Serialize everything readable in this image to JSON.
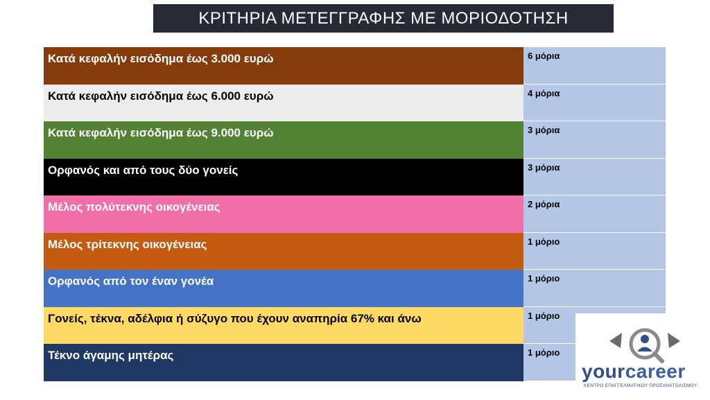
{
  "title": "ΚΡΙΤΗΡΙΑ ΜΕΤΕΓΓΡΑΦΗΣ ΜΕ ΜΟΡΙΟΔΟΤΗΣΗ",
  "rows": [
    {
      "label": "Κατά κεφαλήν εισόδημα έως 3.000 ευρώ",
      "points": "6 μόρια",
      "bg": "#843c0c",
      "fg": "#ffffff"
    },
    {
      "label": "Κατά κεφαλήν εισόδημα έως 6.000 ευρώ",
      "points": "4 μόρια",
      "bg": "#ededed",
      "fg": "#000000"
    },
    {
      "label": "Κατά κεφαλήν εισόδημα έως 9.000 ευρώ",
      "points": "3 μόρια",
      "bg": "#548235",
      "fg": "#ffffff"
    },
    {
      "label": "Ορφανός και από τους δύο γονείς",
      "points": "3 μόρια",
      "bg": "#000000",
      "fg": "#ffffff"
    },
    {
      "label": "Μέλος πολύτεκνης οικογένειας",
      "points": "2 μόρια",
      "bg": "#ef6fa6",
      "fg": "#ffffff"
    },
    {
      "label": "Μέλος τρίτεκνης οικογένειας",
      "points": "1 μόριο",
      "bg": "#c55a11",
      "fg": "#ffffff"
    },
    {
      "label": " Ορφανός από τον έναν γονέα",
      "points": "1 μόριο",
      "bg": "#4472c4",
      "fg": "#ffffff"
    },
    {
      "label": "Γονείς, τέκνα, αδέλφια ή σύζυγο που έχουν αναπηρία 67% και άνω",
      "points": "1 μόριο",
      "bg": "#ffd966",
      "fg": "#000000"
    },
    {
      "label": " Τέκνο άγαμης μητέρας",
      "points": "1 μόριο",
      "bg": "#203864",
      "fg": "#ffffff"
    }
  ],
  "logo": {
    "name_part1": "your",
    "name_part2": "career",
    "subtitle": "ΚΕΝΤΡΟ ΕΠΑΓΓΕΛΜΑΤΙΚΟΥ ΠΡΟΣΑΝΑΤΟΛΙΣΜΟΥ",
    "icon": "magnifier-person-icon",
    "color": "#2f4f8a"
  }
}
